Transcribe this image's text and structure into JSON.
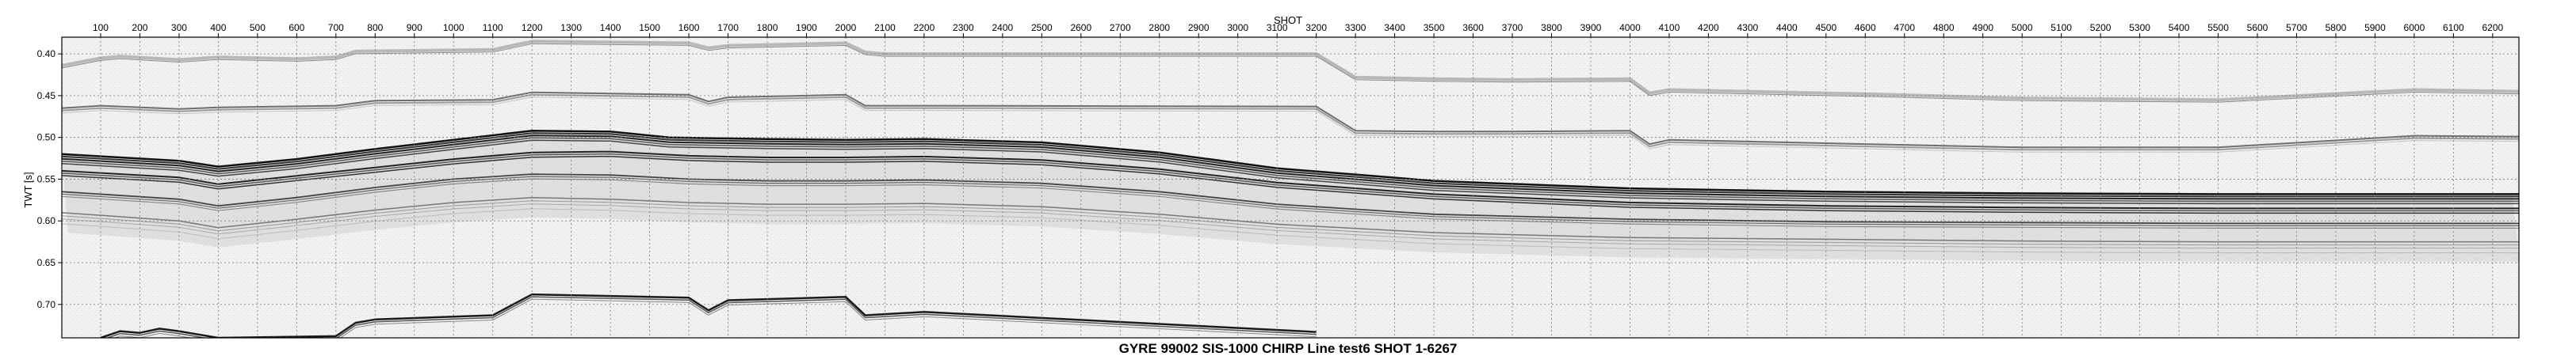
{
  "chart_data": {
    "type": "heatmap",
    "title": "GYRE 99002 SIS-1000 CHIRP Line test6 SHOT 1-6267",
    "xlabel": "SHOT",
    "ylabel": "TWT [s]",
    "xlim": [
      1,
      6267
    ],
    "ylim": [
      0.38,
      0.74
    ],
    "y_inverted": true,
    "x_ticks": [
      100,
      200,
      300,
      400,
      500,
      600,
      700,
      800,
      900,
      1000,
      1100,
      1200,
      1300,
      1400,
      1500,
      1600,
      1700,
      1800,
      1900,
      2000,
      2100,
      2200,
      2300,
      2400,
      2500,
      2600,
      2700,
      2800,
      2900,
      3000,
      3100,
      3200,
      3300,
      3400,
      3500,
      3600,
      3700,
      3800,
      3900,
      4000,
      4100,
      4200,
      4300,
      4400,
      4500,
      4600,
      4700,
      4800,
      4900,
      5000,
      5100,
      5200,
      5300,
      5400,
      5500,
      5600,
      5700,
      5800,
      5900,
      6000,
      6100,
      6200
    ],
    "y_ticks": [
      "0.40",
      "0.45",
      "0.50",
      "0.55",
      "0.60",
      "0.65",
      "0.70"
    ],
    "grid": true,
    "colormap": "grayscale",
    "horizons": [
      {
        "kind": "surface-multiple",
        "shot": [
          1,
          100,
          150,
          300,
          400,
          600,
          700,
          750,
          1100,
          1200,
          1600,
          1650,
          1700,
          2000,
          2050,
          2100,
          3200,
          3300,
          3500,
          3700,
          4000,
          4050,
          4100,
          4600,
          5000,
          5500,
          6000,
          6267
        ],
        "twt": [
          0.414,
          0.405,
          0.403,
          0.407,
          0.404,
          0.406,
          0.404,
          0.397,
          0.395,
          0.385,
          0.387,
          0.393,
          0.39,
          0.387,
          0.398,
          0.4,
          0.4,
          0.428,
          0.43,
          0.431,
          0.43,
          0.447,
          0.443,
          0.448,
          0.453,
          0.455,
          0.443,
          0.445
        ]
      },
      {
        "kind": "multiple-2",
        "shot": [
          1,
          100,
          300,
          400,
          700,
          800,
          1100,
          1200,
          1600,
          1650,
          1700,
          2000,
          2050,
          2200,
          3200,
          3300,
          3500,
          3700,
          4000,
          4050,
          4100,
          4600,
          5000,
          5500,
          6000,
          6267
        ],
        "twt": [
          0.465,
          0.462,
          0.466,
          0.464,
          0.462,
          0.456,
          0.455,
          0.446,
          0.449,
          0.457,
          0.452,
          0.449,
          0.462,
          0.462,
          0.463,
          0.492,
          0.493,
          0.493,
          0.492,
          0.508,
          0.503,
          0.508,
          0.512,
          0.512,
          0.498,
          0.499
        ]
      },
      {
        "kind": "seafloor",
        "shot": [
          1,
          150,
          300,
          400,
          600,
          800,
          1000,
          1200,
          1400,
          1550,
          1800,
          2000,
          2200,
          2500,
          2800,
          3100,
          3500,
          4000,
          4500,
          5000,
          5500,
          6267
        ],
        "twt": [
          0.52,
          0.524,
          0.528,
          0.535,
          0.526,
          0.514,
          0.503,
          0.492,
          0.493,
          0.5,
          0.502,
          0.503,
          0.502,
          0.506,
          0.518,
          0.537,
          0.552,
          0.561,
          0.565,
          0.567,
          0.568,
          0.568
        ]
      },
      {
        "kind": "reflector-A",
        "shot": [
          1,
          300,
          400,
          600,
          800,
          1000,
          1200,
          1400,
          1600,
          1800,
          2000,
          2200,
          2500,
          2800,
          3100,
          3500,
          4000,
          4500,
          5000,
          5500,
          6267
        ],
        "twt": [
          0.54,
          0.548,
          0.556,
          0.546,
          0.536,
          0.526,
          0.518,
          0.517,
          0.522,
          0.524,
          0.524,
          0.523,
          0.527,
          0.538,
          0.554,
          0.568,
          0.578,
          0.582,
          0.584,
          0.585,
          0.585
        ]
      },
      {
        "kind": "reflector-B",
        "shot": [
          1,
          300,
          400,
          600,
          800,
          1000,
          1200,
          1400,
          1600,
          1800,
          2000,
          2200,
          2500,
          2800,
          3100,
          3500,
          4000,
          4500,
          5000,
          5500,
          6267
        ],
        "twt": [
          0.565,
          0.574,
          0.582,
          0.572,
          0.56,
          0.55,
          0.544,
          0.545,
          0.55,
          0.552,
          0.552,
          0.551,
          0.555,
          0.565,
          0.58,
          0.592,
          0.598,
          0.601,
          0.602,
          0.603,
          0.603
        ]
      },
      {
        "kind": "reflector-C",
        "shot": [
          1,
          300,
          400,
          600,
          800,
          1000,
          1200,
          1400,
          1600,
          1800,
          2000,
          2200,
          2500,
          2800,
          3100,
          3500,
          4000,
          4500,
          5000,
          5500,
          6267
        ],
        "twt": [
          0.59,
          0.6,
          0.608,
          0.598,
          0.587,
          0.578,
          0.572,
          0.574,
          0.578,
          0.58,
          0.58,
          0.579,
          0.583,
          0.592,
          0.604,
          0.614,
          0.62,
          0.622,
          0.624,
          0.625,
          0.625
        ]
      },
      {
        "kind": "seafloor-multiple",
        "shot": [
          100,
          150,
          200,
          250,
          300,
          350,
          400,
          700,
          750,
          800,
          1100,
          1200,
          1600,
          1650,
          1700,
          2000,
          2050,
          2200,
          3200
        ],
        "twt": [
          0.74,
          0.732,
          0.734,
          0.729,
          0.732,
          0.736,
          0.74,
          0.738,
          0.722,
          0.718,
          0.713,
          0.688,
          0.692,
          0.707,
          0.695,
          0.691,
          0.713,
          0.709,
          0.733
        ]
      }
    ]
  }
}
